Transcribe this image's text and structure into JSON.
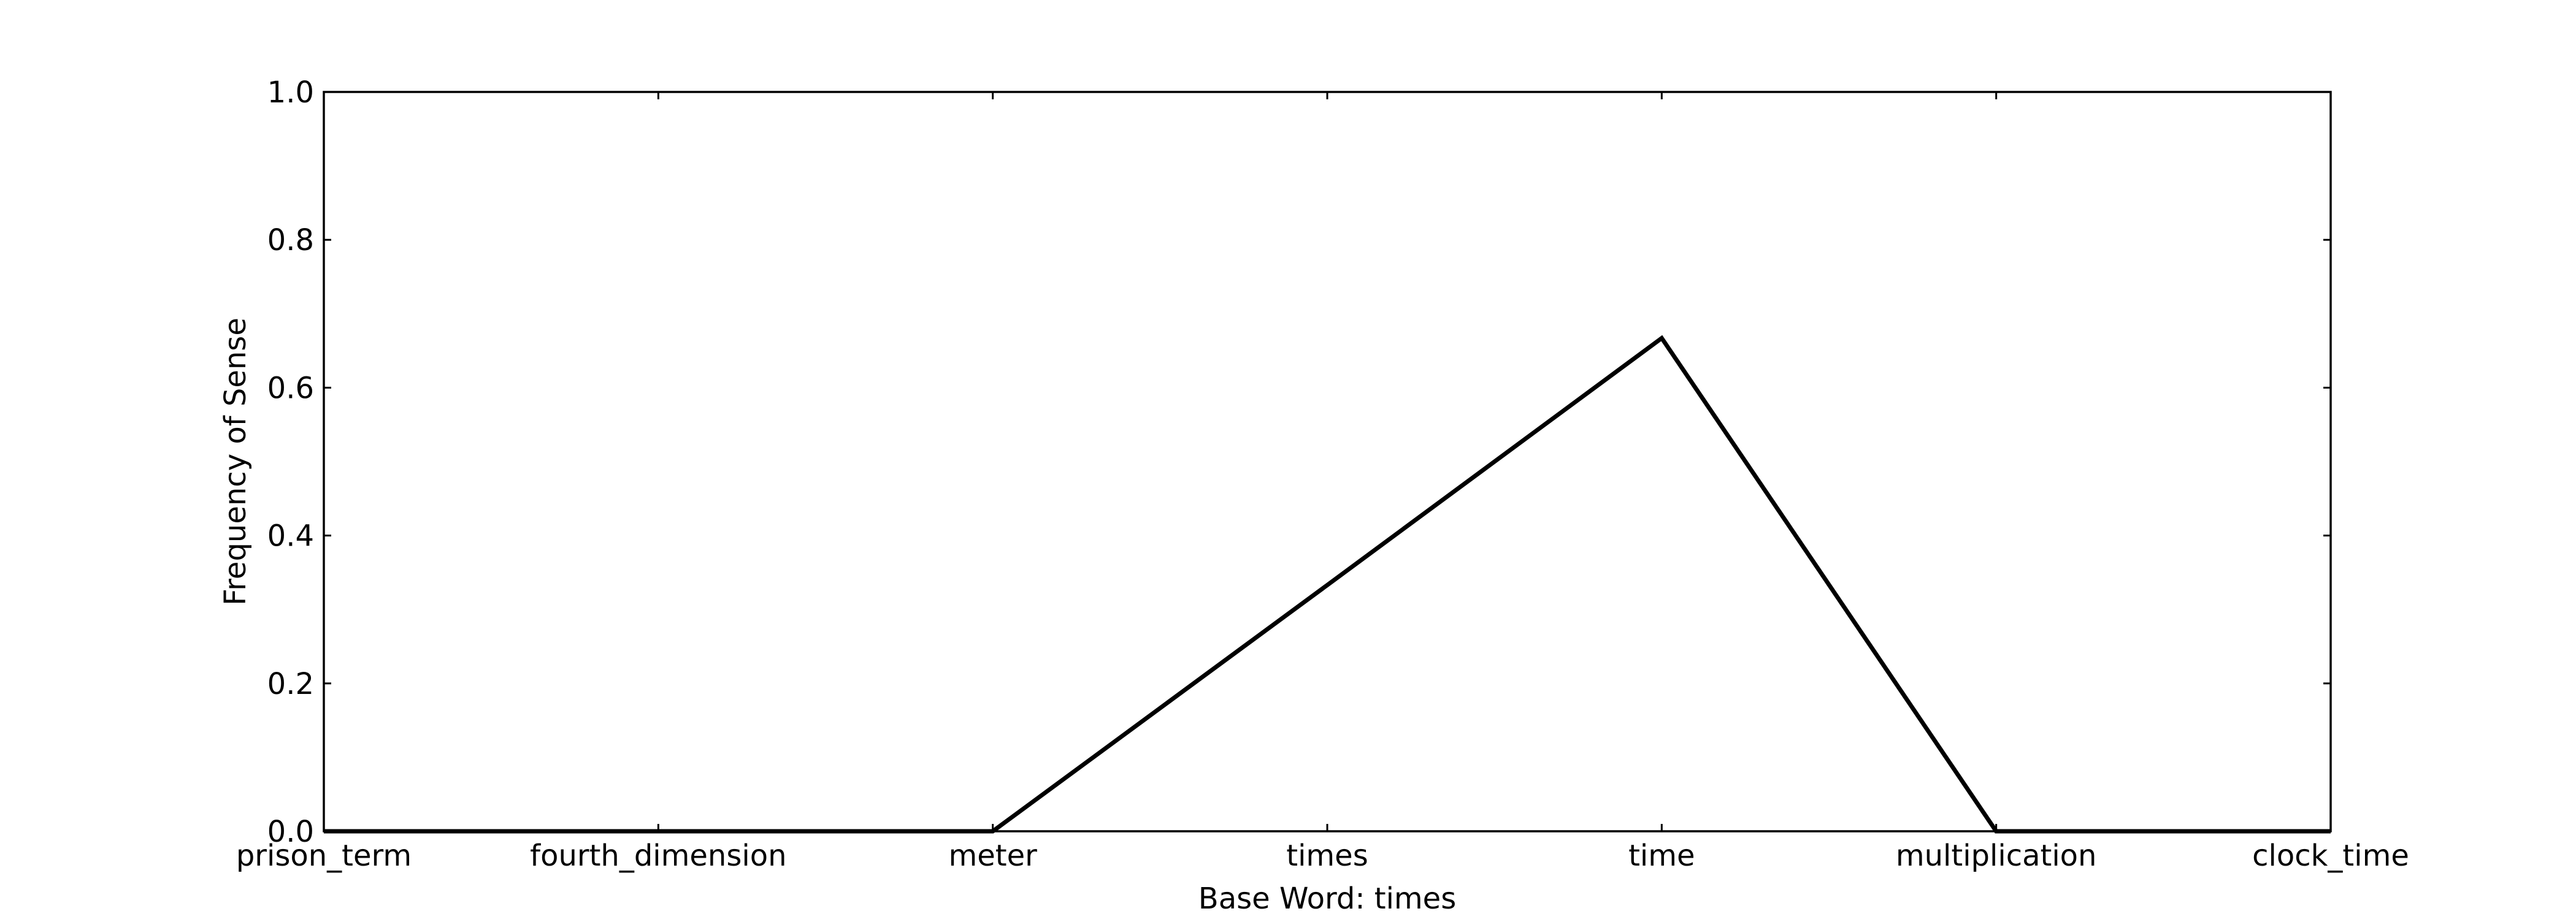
{
  "chart_data": {
    "type": "line",
    "title": "",
    "xlabel": "Base Word: times",
    "ylabel": "Frequency of Sense",
    "categories": [
      "prison_term",
      "fourth_dimension",
      "meter",
      "times",
      "time",
      "multiplication",
      "clock_time"
    ],
    "series": [
      {
        "values": [
          0.0,
          0.0,
          0.0,
          0.333,
          0.667,
          0.0,
          0.0
        ],
        "color": "#000000"
      }
    ],
    "ylim": [
      0,
      1.0
    ],
    "yticks": [
      0.0,
      0.2,
      0.4,
      0.6,
      0.8,
      1.0
    ],
    "ytick_labels": [
      "0.0",
      "0.2",
      "0.4",
      "0.6",
      "0.8",
      "1.0"
    ],
    "grid": false,
    "legend": "none"
  }
}
